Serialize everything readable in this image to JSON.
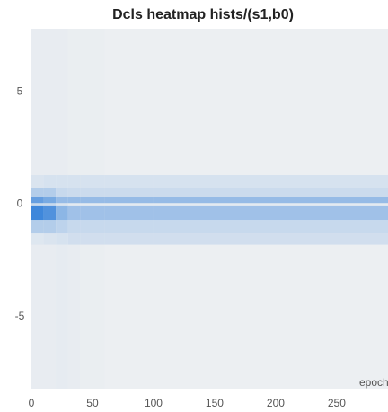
{
  "chart_data": {
    "type": "heatmap",
    "title": "Dcls heatmap hists/(s1,b0)",
    "x_label": "epoch",
    "x_edges": [
      0,
      10,
      20,
      30,
      40,
      60,
      100,
      292
    ],
    "y_edges": [
      -8.2,
      -1.8,
      -1.3,
      -0.7,
      -0.05,
      0.05,
      0.3,
      0.7,
      1.3,
      7.8
    ],
    "values": [
      [
        0.03,
        0.03,
        0.04,
        0.03,
        0.02,
        0.01,
        0.01
      ],
      [
        0.08,
        0.1,
        0.12,
        0.15,
        0.15,
        0.15,
        0.15
      ],
      [
        0.3,
        0.3,
        0.25,
        0.2,
        0.2,
        0.2,
        0.2
      ],
      [
        0.9,
        0.8,
        0.5,
        0.4,
        0.4,
        0.4,
        0.4
      ],
      [
        0.2,
        0.2,
        0.1,
        0.05,
        0.05,
        0.05,
        0.05
      ],
      [
        0.7,
        0.6,
        0.45,
        0.45,
        0.45,
        0.45,
        0.45
      ],
      [
        0.3,
        0.3,
        0.2,
        0.18,
        0.18,
        0.18,
        0.18
      ],
      [
        0.1,
        0.12,
        0.12,
        0.12,
        0.12,
        0.12,
        0.12
      ],
      [
        0.03,
        0.03,
        0.03,
        0.02,
        0.02,
        0.01,
        0.01
      ]
    ],
    "colormap": [
      "#eef0f2",
      "#2a7bd8"
    ],
    "xlim": [
      0,
      292
    ],
    "xticks": [
      0,
      50,
      100,
      150,
      200,
      250
    ],
    "ylim": [
      -8.2,
      7.8
    ],
    "yticks": [
      -5,
      0,
      5
    ]
  }
}
